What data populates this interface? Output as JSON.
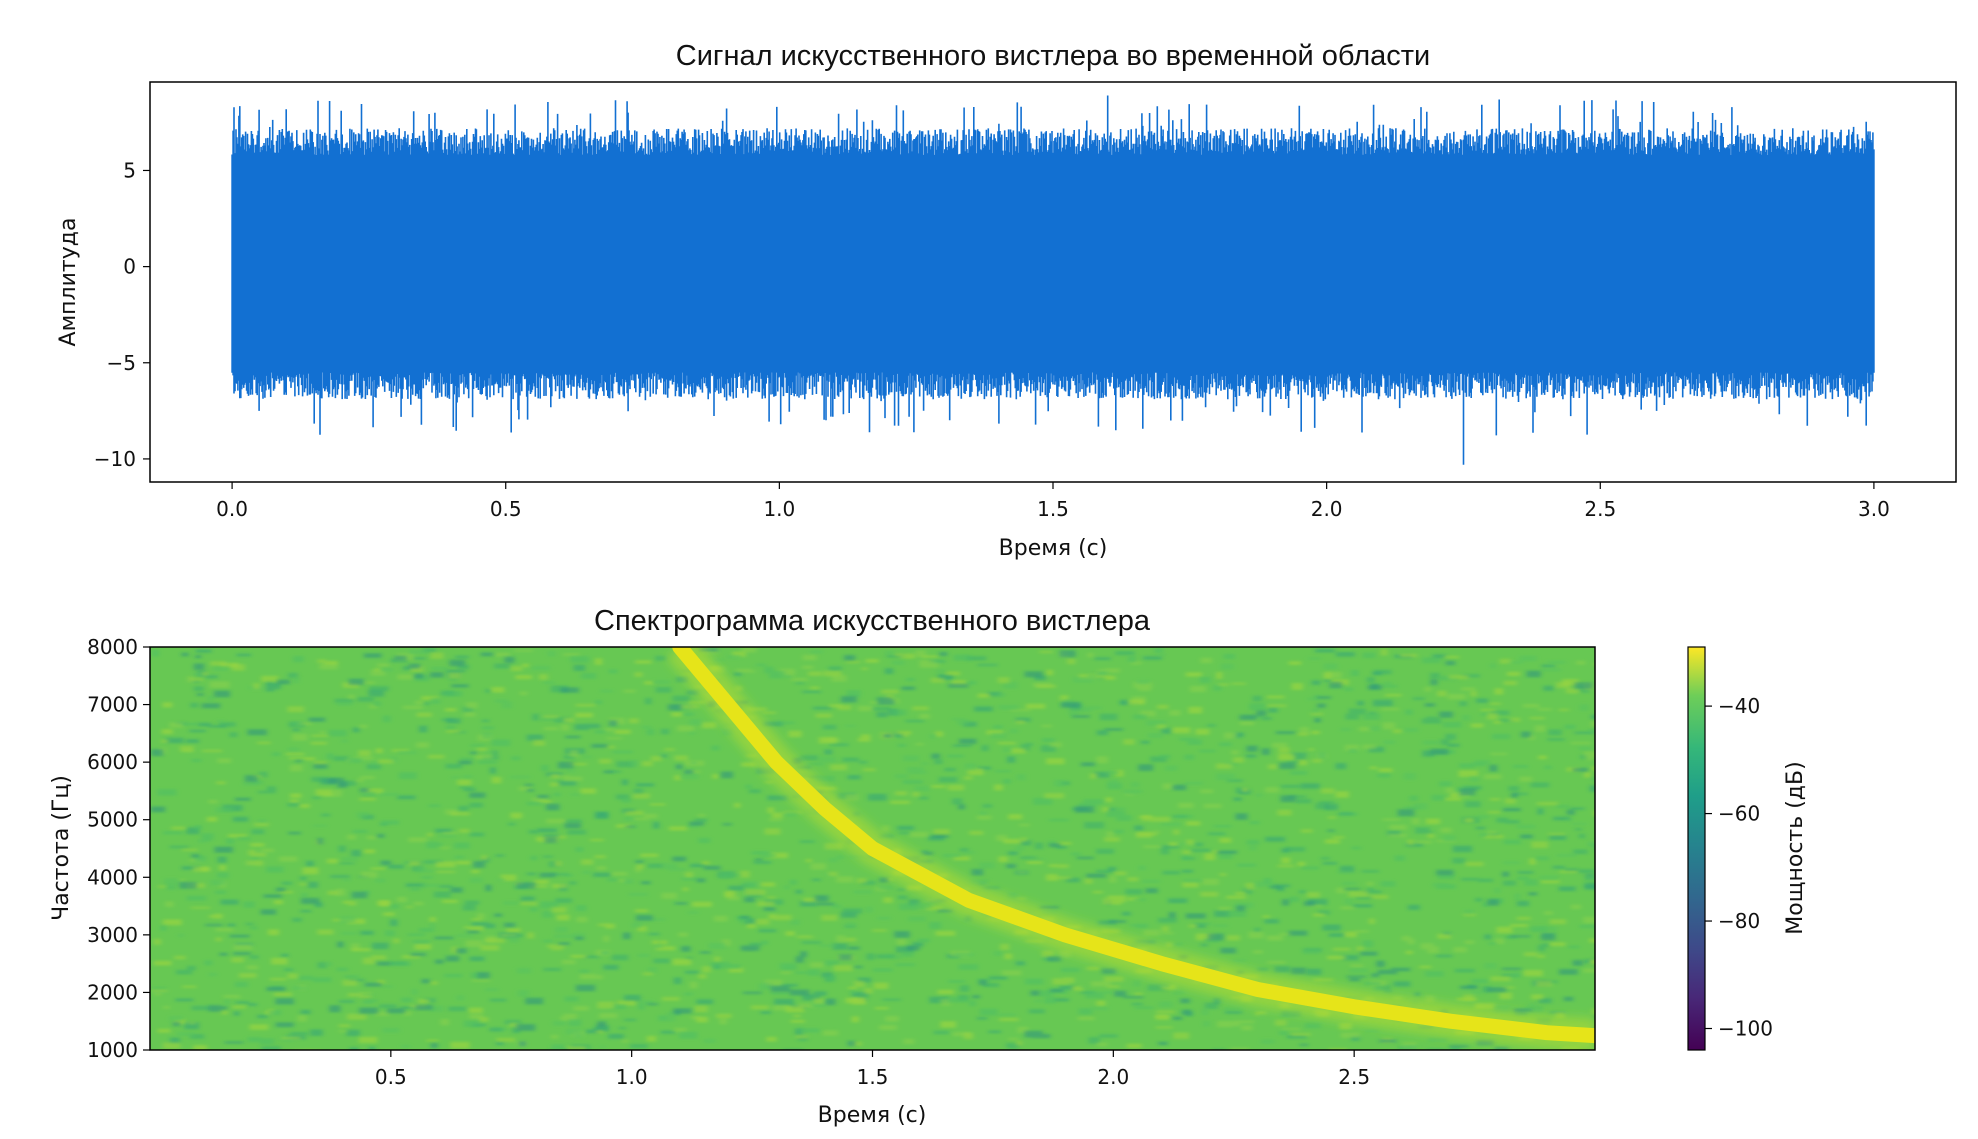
{
  "chart_data": [
    {
      "type": "line",
      "title": "Сигнал искусственного вистлера во временной области",
      "xlabel": "Время (с)",
      "ylabel": "Амплитуда",
      "xlim": [
        -0.15,
        3.15
      ],
      "ylim": [
        -11.2,
        9.6
      ],
      "xticks": [
        0.0,
        0.5,
        1.0,
        1.5,
        2.0,
        2.5,
        3.0
      ],
      "xtick_labels": [
        "0.0",
        "0.5",
        "1.0",
        "1.5",
        "2.0",
        "2.5",
        "3.0"
      ],
      "yticks": [
        -10,
        -5,
        0,
        5
      ],
      "ytick_labels": [
        "−10",
        "−5",
        "0",
        "5"
      ],
      "signal_duration_s": 3.0,
      "typical_envelope": [
        -5.5,
        5.8
      ],
      "peak_max": 8.9,
      "peak_min": -10.3,
      "grid": false,
      "line_color": "#1270d2"
    },
    {
      "type": "heatmap",
      "title": "Спектрограмма искусственного вистлера",
      "xlabel": "Время (с)",
      "ylabel": "Частота (Гц)",
      "xlim": [
        0.0,
        3.0
      ],
      "ylim": [
        1000,
        8000
      ],
      "xticks": [
        0.5,
        1.0,
        1.5,
        2.0,
        2.5
      ],
      "xtick_labels": [
        "0.5",
        "1.0",
        "1.5",
        "2.0",
        "2.5"
      ],
      "yticks": [
        1000,
        2000,
        3000,
        4000,
        5000,
        6000,
        7000,
        8000
      ],
      "ytick_labels": [
        "1000",
        "2000",
        "3000",
        "4000",
        "5000",
        "6000",
        "7000",
        "8000"
      ],
      "colormap": "viridis",
      "background_power_db": -45,
      "whistler_trace": {
        "t": [
          1.1,
          1.2,
          1.3,
          1.4,
          1.5,
          1.7,
          1.9,
          2.1,
          2.3,
          2.5,
          2.7,
          2.9,
          3.0
        ],
        "f": [
          8000,
          7000,
          6000,
          5200,
          4500,
          3600,
          3000,
          2500,
          2050,
          1750,
          1500,
          1300,
          1250
        ]
      },
      "colorbar": {
        "label": "Мощность (дБ)",
        "range": [
          -104,
          -29
        ],
        "ticks": [
          -40,
          -60,
          -80,
          -100
        ],
        "tick_labels": [
          "−40",
          "−60",
          "−80",
          "−100"
        ]
      }
    }
  ]
}
